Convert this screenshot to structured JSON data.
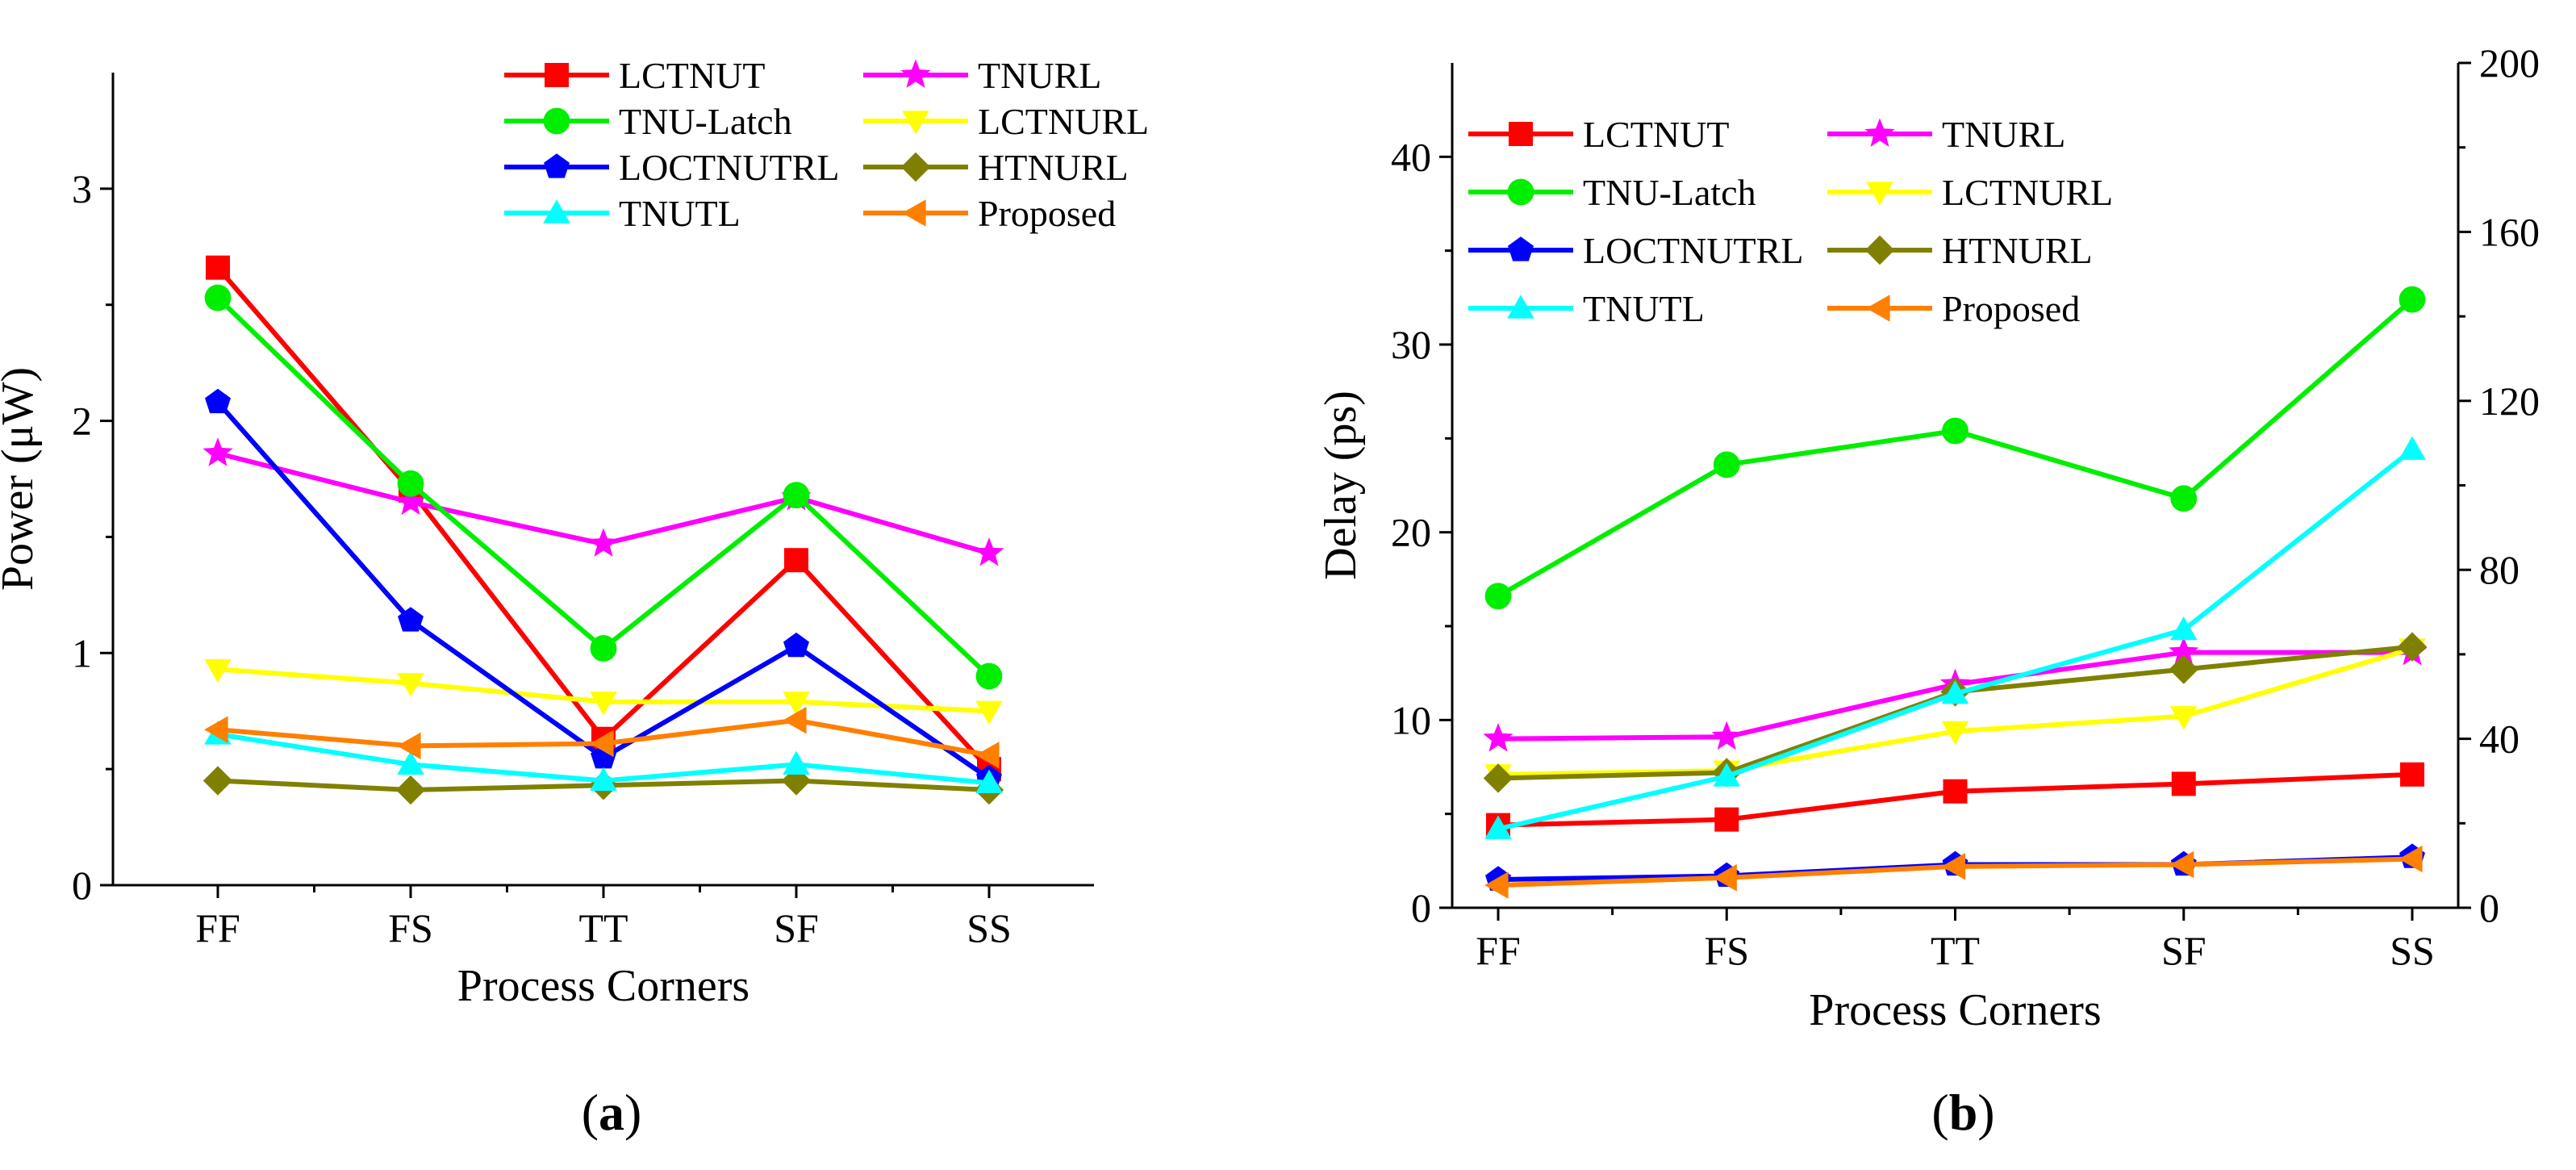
{
  "chart_data": [
    {
      "type": "line",
      "panel_label": "(a)",
      "panel_open": "(",
      "panel_letter": "a",
      "panel_close": ")",
      "title": "",
      "xlabel": "Process Corners",
      "ylabel": "Power (μW)",
      "categories": [
        "FF",
        "FS",
        "TT",
        "SF",
        "SS"
      ],
      "ylim": [
        0,
        3.5
      ],
      "yticks": [
        0,
        1,
        2,
        3
      ],
      "grid": false,
      "legend_placement": "top-right",
      "series": [
        {
          "name": "LCTNUT",
          "color": "#ff0000",
          "marker": "square",
          "values": [
            2.66,
            1.7,
            0.63,
            1.4,
            0.5
          ]
        },
        {
          "name": "TNURL",
          "color": "#ff00ff",
          "marker": "star",
          "values": [
            1.86,
            1.65,
            1.47,
            1.67,
            1.43
          ]
        },
        {
          "name": "TNU-Latch",
          "color": "#00ee00",
          "marker": "circle",
          "values": [
            2.53,
            1.73,
            1.02,
            1.68,
            0.9
          ]
        },
        {
          "name": "LCTNURL",
          "color": "#ffff00",
          "marker": "triangle-down",
          "values": [
            0.93,
            0.87,
            0.79,
            0.79,
            0.75
          ]
        },
        {
          "name": "LOCTNUTRL",
          "color": "#0000ff",
          "marker": "pentagon",
          "values": [
            2.08,
            1.14,
            0.55,
            1.03,
            0.46
          ]
        },
        {
          "name": "HTNURL",
          "color": "#808000",
          "marker": "diamond",
          "values": [
            0.45,
            0.41,
            0.43,
            0.45,
            0.41
          ]
        },
        {
          "name": "TNUTL",
          "color": "#00ffff",
          "marker": "triangle-up",
          "values": [
            0.65,
            0.52,
            0.45,
            0.52,
            0.44
          ]
        },
        {
          "name": "Proposed",
          "color": "#ff7f00",
          "marker": "triangle-left",
          "values": [
            0.67,
            0.6,
            0.61,
            0.71,
            0.56
          ]
        }
      ]
    },
    {
      "type": "line",
      "panel_label": "(b)",
      "panel_open": "(",
      "panel_letter": "b",
      "panel_close": ")",
      "title": "",
      "xlabel": "Process Corners",
      "ylabel": "Delay (ps)",
      "categories": [
        "FF",
        "FS",
        "TT",
        "SF",
        "SS"
      ],
      "ylim": [
        0,
        45
      ],
      "yticks": [
        0,
        10,
        20,
        30,
        40
      ],
      "y2lim": [
        0,
        200
      ],
      "y2ticks": [
        0,
        40,
        80,
        120,
        160,
        200
      ],
      "grid": false,
      "legend_placement": "top-left",
      "series": [
        {
          "name": "LCTNUT",
          "color": "#ff0000",
          "marker": "square",
          "values": [
            4.4,
            4.7,
            6.2,
            6.6,
            7.1
          ]
        },
        {
          "name": "TNURL",
          "color": "#ff00ff",
          "marker": "star",
          "values": [
            9.0,
            9.1,
            11.9,
            13.6,
            13.6
          ]
        },
        {
          "name": "TNU-Latch",
          "color": "#00ee00",
          "marker": "circle",
          "values": [
            16.6,
            23.6,
            25.4,
            21.8,
            32.4
          ]
        },
        {
          "name": "LCTNURL",
          "color": "#ffff00",
          "marker": "triangle-down",
          "values": [
            7.1,
            7.3,
            9.4,
            10.2,
            13.8
          ]
        },
        {
          "name": "LOCTNUTRL",
          "color": "#0000ff",
          "marker": "pentagon",
          "values": [
            1.5,
            1.7,
            2.3,
            2.3,
            2.7
          ]
        },
        {
          "name": "HTNURL",
          "color": "#808000",
          "marker": "diamond",
          "values": [
            6.9,
            7.2,
            11.5,
            12.7,
            13.9
          ]
        },
        {
          "name": "TNUTL",
          "color": "#00ffff",
          "marker": "triangle-up",
          "values": [
            4.2,
            7.0,
            11.4,
            14.8,
            24.4
          ]
        },
        {
          "name": "Proposed",
          "color": "#ff7f00",
          "marker": "triangle-left",
          "values": [
            1.2,
            1.6,
            2.2,
            2.3,
            2.6
          ]
        }
      ]
    }
  ]
}
